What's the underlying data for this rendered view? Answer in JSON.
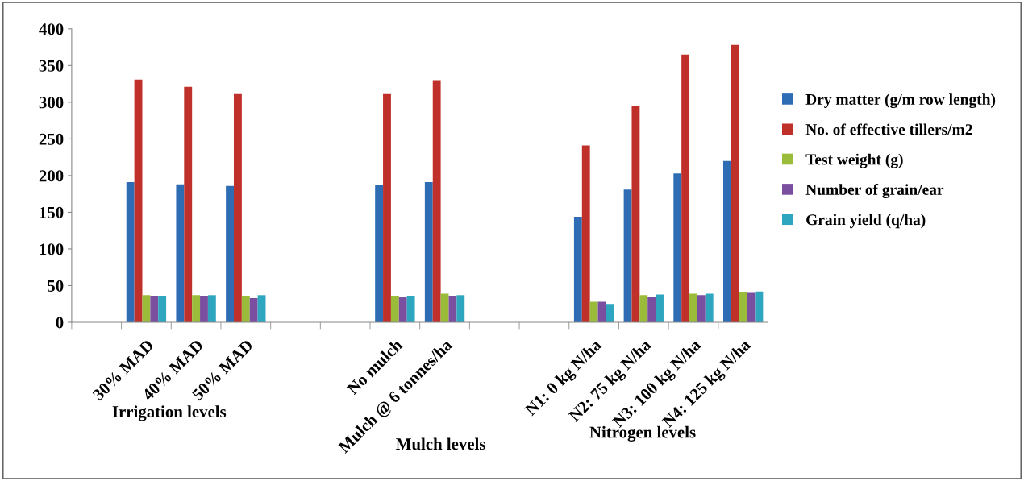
{
  "chart_data": {
    "type": "bar",
    "categories": [
      null,
      "30% MAD",
      "40% MAD",
      "50% MAD",
      null,
      null,
      "No mulch",
      "Mulch @ 6 tonnes/ha",
      null,
      null,
      "N1: 0 kg N/ha",
      "N2: 75 kg N/ha",
      "N3: 100 kg N/ha",
      "N4: 125 kg N/ha"
    ],
    "series": [
      {
        "name": "Dry matter (g/m row length)",
        "color": "#2e6db4",
        "values": [
          null,
          191,
          188,
          186,
          null,
          null,
          187,
          191,
          null,
          null,
          144,
          181,
          203,
          220
        ]
      },
      {
        "name": "No. of effective tillers/m2",
        "color": "#c0302a",
        "values": [
          null,
          331,
          321,
          311,
          null,
          null,
          311,
          330,
          null,
          null,
          241,
          295,
          365,
          378
        ]
      },
      {
        "name": "Test weight (g)",
        "color": "#9bbb3b",
        "values": [
          null,
          37,
          37,
          36,
          null,
          null,
          36,
          39,
          null,
          null,
          28,
          37,
          39,
          41
        ]
      },
      {
        "name": "Number of grain/ear",
        "color": "#7b4fa0",
        "values": [
          null,
          36,
          36,
          33,
          null,
          null,
          34,
          36,
          null,
          null,
          28,
          34,
          37,
          40
        ]
      },
      {
        "name": "Grain yield (q/ha)",
        "color": "#2ea6c0",
        "values": [
          null,
          36,
          37,
          37,
          null,
          null,
          36,
          37,
          null,
          null,
          25,
          38,
          39,
          42
        ]
      }
    ],
    "ylim": [
      0,
      400
    ],
    "yticks": [
      0,
      50,
      100,
      150,
      200,
      250,
      300,
      350,
      400
    ],
    "annotations": [
      {
        "text": "Irrigation levels"
      },
      {
        "text": "Mulch levels"
      },
      {
        "text": "Nitrogen levels"
      }
    ],
    "grid": false,
    "legend": "right"
  }
}
